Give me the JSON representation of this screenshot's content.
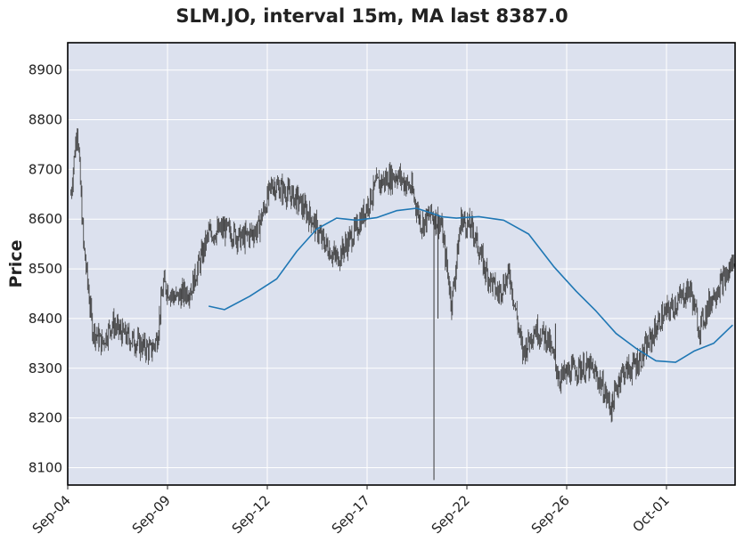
{
  "chart_data": {
    "type": "candlestick",
    "title": "SLM.JO, interval 15m, MA last 8387.0",
    "xlabel": "",
    "ylabel": "Price",
    "ylim": [
      8065,
      8955
    ],
    "y_ticks": [
      8100,
      8200,
      8300,
      8400,
      8500,
      8600,
      8700,
      8800,
      8900
    ],
    "x_ticks": [
      "Sep-04",
      "Sep-09",
      "Sep-12",
      "Sep-17",
      "Sep-22",
      "Sep-26",
      "Oct-01"
    ],
    "grid": true,
    "colors": {
      "background": "#dce1ee",
      "grid": "#ffffff",
      "price": "#3a3a3a",
      "ma": "#1f77b4",
      "frame": "#000000"
    },
    "price_anchors": [
      {
        "x": "Sep-04",
        "y": 8650
      },
      {
        "x": "Sep-04",
        "y": 8790
      },
      {
        "x": "Sep-04",
        "y": 8550
      },
      {
        "x": "Sep-05",
        "y": 8380
      },
      {
        "x": "Sep-05",
        "y": 8350
      },
      {
        "x": "Sep-06",
        "y": 8390
      },
      {
        "x": "Sep-06",
        "y": 8370
      },
      {
        "x": "Sep-08",
        "y": 8335
      },
      {
        "x": "Sep-08",
        "y": 8360
      },
      {
        "x": "Sep-08",
        "y": 8470
      },
      {
        "x": "Sep-09",
        "y": 8440
      },
      {
        "x": "Sep-09",
        "y": 8460
      },
      {
        "x": "Sep-10",
        "y": 8570
      },
      {
        "x": "Sep-10",
        "y": 8580
      },
      {
        "x": "Sep-11",
        "y": 8560
      },
      {
        "x": "Sep-11",
        "y": 8580
      },
      {
        "x": "Sep-12",
        "y": 8670
      },
      {
        "x": "Sep-12",
        "y": 8660
      },
      {
        "x": "Sep-13",
        "y": 8640
      },
      {
        "x": "Sep-14",
        "y": 8600
      },
      {
        "x": "Sep-14",
        "y": 8560
      },
      {
        "x": "Sep-15",
        "y": 8520
      },
      {
        "x": "Sep-16",
        "y": 8580
      },
      {
        "x": "Sep-17",
        "y": 8670
      },
      {
        "x": "Sep-18",
        "y": 8690
      },
      {
        "x": "Sep-19",
        "y": 8660
      },
      {
        "x": "Sep-19",
        "y": 8590
      },
      {
        "x": "Sep-20",
        "y": 8610
      },
      {
        "x": "Sep-20",
        "y": 8590
      },
      {
        "x": "Sep-21",
        "y": 8430
      },
      {
        "x": "Sep-21",
        "y": 8600
      },
      {
        "x": "Sep-22",
        "y": 8580
      },
      {
        "x": "Sep-22",
        "y": 8500
      },
      {
        "x": "Sep-23",
        "y": 8450
      },
      {
        "x": "Sep-23",
        "y": 8490
      },
      {
        "x": "Sep-24",
        "y": 8330
      },
      {
        "x": "Sep-24",
        "y": 8380
      },
      {
        "x": "Sep-25",
        "y": 8360
      },
      {
        "x": "Sep-25",
        "y": 8280
      },
      {
        "x": "Sep-26",
        "y": 8300
      },
      {
        "x": "Sep-27",
        "y": 8300
      },
      {
        "x": "Sep-27",
        "y": 8270
      },
      {
        "x": "Sep-28",
        "y": 8220
      },
      {
        "x": "Sep-28",
        "y": 8290
      },
      {
        "x": "Sep-29",
        "y": 8300
      },
      {
        "x": "Sep-29",
        "y": 8320
      },
      {
        "x": "Sep-30",
        "y": 8360
      },
      {
        "x": "Sep-30",
        "y": 8400
      },
      {
        "x": "Oct-01",
        "y": 8430
      },
      {
        "x": "Oct-02",
        "y": 8460
      },
      {
        "x": "Oct-02",
        "y": 8380
      },
      {
        "x": "Oct-03",
        "y": 8450
      },
      {
        "x": "Oct-04",
        "y": 8490
      },
      {
        "x": "Oct-04",
        "y": 8530
      }
    ],
    "spikes": [
      {
        "x": "Sep-20",
        "y_low": 8075,
        "y_high": 8600
      },
      {
        "x": "Sep-20",
        "y_low": 8400,
        "y_high": 8610
      },
      {
        "x": "Sep-25",
        "y_low": 8320,
        "y_high": 8390
      }
    ],
    "ma_series": {
      "x": [
        "Sep-10",
        "Sep-10",
        "Sep-11",
        "Sep-12",
        "Sep-13",
        "Sep-14",
        "Sep-15",
        "Sep-16",
        "Sep-17",
        "Sep-18",
        "Sep-19",
        "Sep-20",
        "Sep-20",
        "Sep-21",
        "Sep-22",
        "Sep-23",
        "Sep-24",
        "Sep-25",
        "Sep-26",
        "Sep-27",
        "Sep-28",
        "Sep-29",
        "Sep-30",
        "Oct-01",
        "Oct-02",
        "Oct-03",
        "Oct-04"
      ],
      "y": [
        8425,
        8418,
        8445,
        8480,
        8535,
        8580,
        8602,
        8598,
        8603,
        8617,
        8622,
        8612,
        8605,
        8602,
        8605,
        8598,
        8570,
        8505,
        8455,
        8415,
        8370,
        8340,
        8315,
        8312,
        8335,
        8350,
        8387
      ]
    }
  }
}
